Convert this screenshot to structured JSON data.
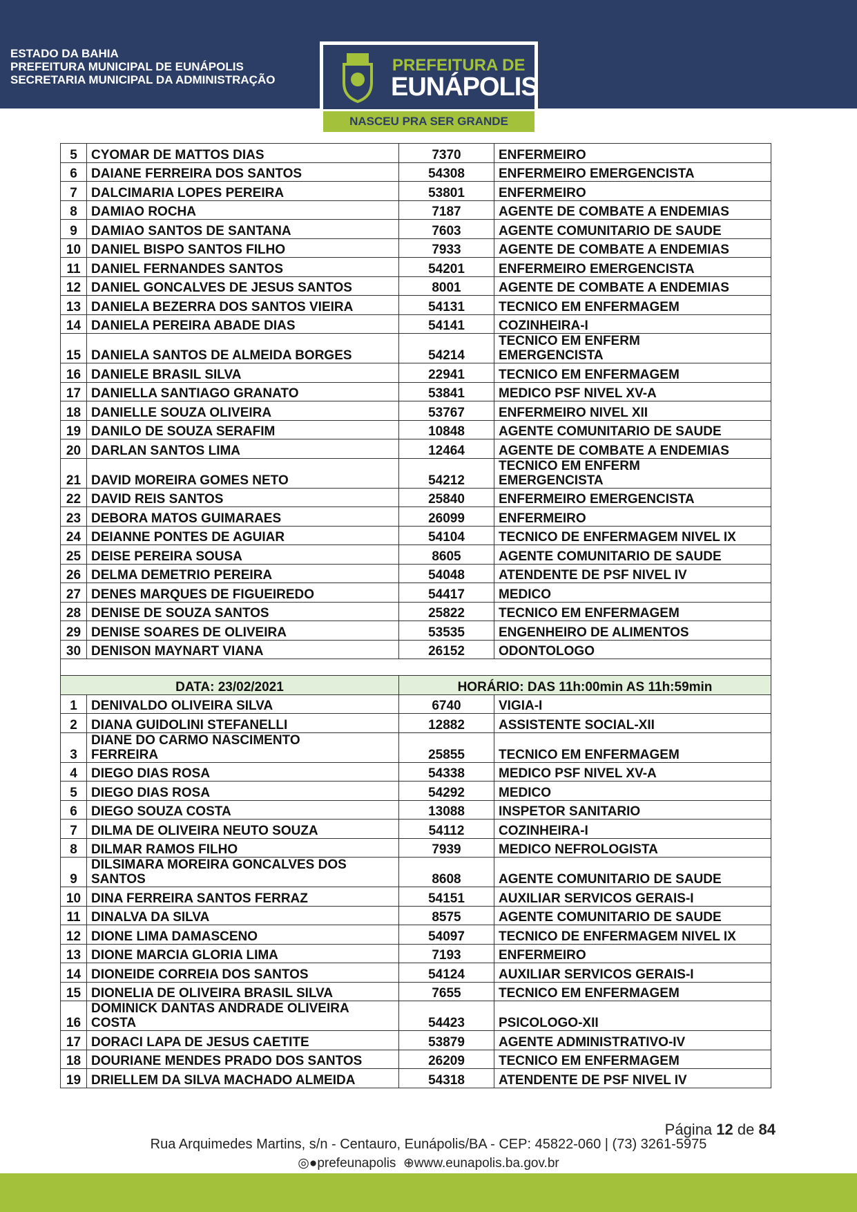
{
  "header": {
    "lines": [
      "ESTADO DA BAHIA",
      "PREFEITURA MUNICIPAL DE EUNÁPOLIS",
      "SECRETARIA MUNICIPAL DA ADMINISTRAÇÃO"
    ],
    "logo": {
      "line1": "PREFEITURA DE",
      "line2": "EUNÁPOLIS",
      "slogan": "NASCEU PRA SER GRANDE"
    }
  },
  "colors": {
    "navy": "#2c3e66",
    "green": "#a3c13b",
    "section_bg": "#e2efda"
  },
  "table1": [
    [
      "5",
      "CYOMAR DE MATTOS DIAS",
      "7370",
      "ENFERMEIRO"
    ],
    [
      "6",
      "DAIANE FERREIRA DOS SANTOS",
      "54308",
      "ENFERMEIRO EMERGENCISTA"
    ],
    [
      "7",
      "DALCIMARIA LOPES PEREIRA",
      "53801",
      "ENFERMEIRO"
    ],
    [
      "8",
      "DAMIAO ROCHA",
      "7187",
      "AGENTE DE COMBATE A ENDEMIAS"
    ],
    [
      "9",
      "DAMIAO SANTOS DE SANTANA",
      "7603",
      "AGENTE COMUNITARIO DE SAUDE"
    ],
    [
      "10",
      "DANIEL BISPO SANTOS FILHO",
      "7933",
      "AGENTE DE COMBATE A ENDEMIAS"
    ],
    [
      "11",
      "DANIEL FERNANDES SANTOS",
      "54201",
      "ENFERMEIRO EMERGENCISTA"
    ],
    [
      "12",
      "DANIEL GONCALVES DE JESUS SANTOS",
      "8001",
      "AGENTE DE COMBATE A ENDEMIAS"
    ],
    [
      "13",
      "DANIELA BEZERRA DOS SANTOS VIEIRA",
      "54131",
      "TECNICO EM ENFERMAGEM"
    ],
    [
      "14",
      "DANIELA PEREIRA ABADE DIAS",
      "54141",
      "COZINHEIRA-I"
    ],
    [
      "15",
      "DANIELA SANTOS DE ALMEIDA BORGES",
      "54214",
      "TECNICO EM ENFERM\nEMERGENCISTA"
    ],
    [
      "16",
      "DANIELE BRASIL SILVA",
      "22941",
      "TECNICO EM ENFERMAGEM"
    ],
    [
      "17",
      "DANIELLA SANTIAGO GRANATO",
      "53841",
      "MEDICO PSF NIVEL XV-A"
    ],
    [
      "18",
      "DANIELLE SOUZA OLIVEIRA",
      "53767",
      "ENFERMEIRO NIVEL XII"
    ],
    [
      "19",
      "DANILO DE SOUZA SERAFIM",
      "10848",
      "AGENTE COMUNITARIO DE SAUDE"
    ],
    [
      "20",
      "DARLAN SANTOS LIMA",
      "12464",
      "AGENTE DE COMBATE A ENDEMIAS"
    ],
    [
      "21",
      "DAVID MOREIRA GOMES NETO",
      "54212",
      "TECNICO EM ENFERM\nEMERGENCISTA"
    ],
    [
      "22",
      "DAVID REIS SANTOS",
      "25840",
      "ENFERMEIRO EMERGENCISTA"
    ],
    [
      "23",
      "DEBORA MATOS GUIMARAES",
      "26099",
      "ENFERMEIRO"
    ],
    [
      "24",
      "DEIANNE PONTES DE AGUIAR",
      "54104",
      "TECNICO DE ENFERMAGEM NIVEL IX"
    ],
    [
      "25",
      "DEISE PEREIRA SOUSA",
      "8605",
      "AGENTE COMUNITARIO DE SAUDE"
    ],
    [
      "26",
      "DELMA DEMETRIO PEREIRA",
      "54048",
      "ATENDENTE DE PSF NIVEL IV"
    ],
    [
      "27",
      "DENES MARQUES DE FIGUEIREDO",
      "54417",
      "MEDICO"
    ],
    [
      "28",
      "DENISE DE SOUZA SANTOS",
      "25822",
      "TECNICO EM ENFERMAGEM"
    ],
    [
      "29",
      "DENISE SOARES DE OLIVEIRA",
      "53535",
      "ENGENHEIRO DE ALIMENTOS"
    ],
    [
      "30",
      "DENISON MAYNART VIANA",
      "26152",
      "ODONTOLOGO"
    ]
  ],
  "section": {
    "date": "DATA: 23/02/2021",
    "time": "HORÁRIO: DAS 11h:00min AS 11h:59min"
  },
  "table2": [
    [
      "1",
      "DENIVALDO OLIVEIRA SILVA",
      "6740",
      "VIGIA-I"
    ],
    [
      "2",
      "DIANA GUIDOLINI STEFANELLI",
      "12882",
      "ASSISTENTE SOCIAL-XII"
    ],
    [
      "3",
      "DIANE DO CARMO NASCIMENTO\nFERREIRA",
      "25855",
      "TECNICO EM ENFERMAGEM"
    ],
    [
      "4",
      "DIEGO DIAS ROSA",
      "54338",
      "MEDICO PSF NIVEL XV-A"
    ],
    [
      "5",
      "DIEGO DIAS ROSA",
      "54292",
      "MEDICO"
    ],
    [
      "6",
      "DIEGO SOUZA COSTA",
      "13088",
      "INSPETOR SANITARIO"
    ],
    [
      "7",
      "DILMA DE OLIVEIRA NEUTO SOUZA",
      "54112",
      "COZINHEIRA-I"
    ],
    [
      "8",
      "DILMAR RAMOS FILHO",
      "7939",
      "MEDICO NEFROLOGISTA"
    ],
    [
      "9",
      "DILSIMARA MOREIRA GONCALVES DOS\nSANTOS",
      "8608",
      "AGENTE COMUNITARIO DE SAUDE"
    ],
    [
      "10",
      "DINA FERREIRA SANTOS FERRAZ",
      "54151",
      "AUXILIAR SERVICOS GERAIS-I"
    ],
    [
      "11",
      "DINALVA DA SILVA",
      "8575",
      "AGENTE COMUNITARIO DE SAUDE"
    ],
    [
      "12",
      "DIONE LIMA DAMASCENO",
      "54097",
      "TECNICO DE ENFERMAGEM NIVEL IX"
    ],
    [
      "13",
      "DIONE MARCIA GLORIA LIMA",
      "7193",
      "ENFERMEIRO"
    ],
    [
      "14",
      "DIONEIDE CORREIA DOS SANTOS",
      "54124",
      "AUXILIAR SERVICOS GERAIS-I"
    ],
    [
      "15",
      "DIONELIA DE OLIVEIRA BRASIL SILVA",
      "7655",
      "TECNICO EM ENFERMAGEM"
    ],
    [
      "16",
      "DOMINICK DANTAS ANDRADE OLIVEIRA\nCOSTA",
      "54423",
      "PSICOLOGO-XII"
    ],
    [
      "17",
      "DORACI LAPA DE JESUS CAETITE",
      "53879",
      "AGENTE ADMINISTRATIVO-IV"
    ],
    [
      "18",
      "DOURIANE MENDES PRADO DOS SANTOS",
      "26209",
      "TECNICO EM ENFERMAGEM"
    ],
    [
      "19",
      "DRIELLEM DA SILVA MACHADO ALMEIDA",
      "54318",
      "ATENDENTE DE PSF NIVEL IV"
    ]
  ],
  "footer": {
    "page_label": "Página",
    "page": "12",
    "of": "de",
    "total": "84",
    "address": "Rua Arquimedes Martins, s/n - Centauro, Eunápolis/BA - CEP: 45822-060 | (73) 3261-5975",
    "social": "prefeunapolis",
    "website": "www.eunapolis.ba.gov.br"
  }
}
